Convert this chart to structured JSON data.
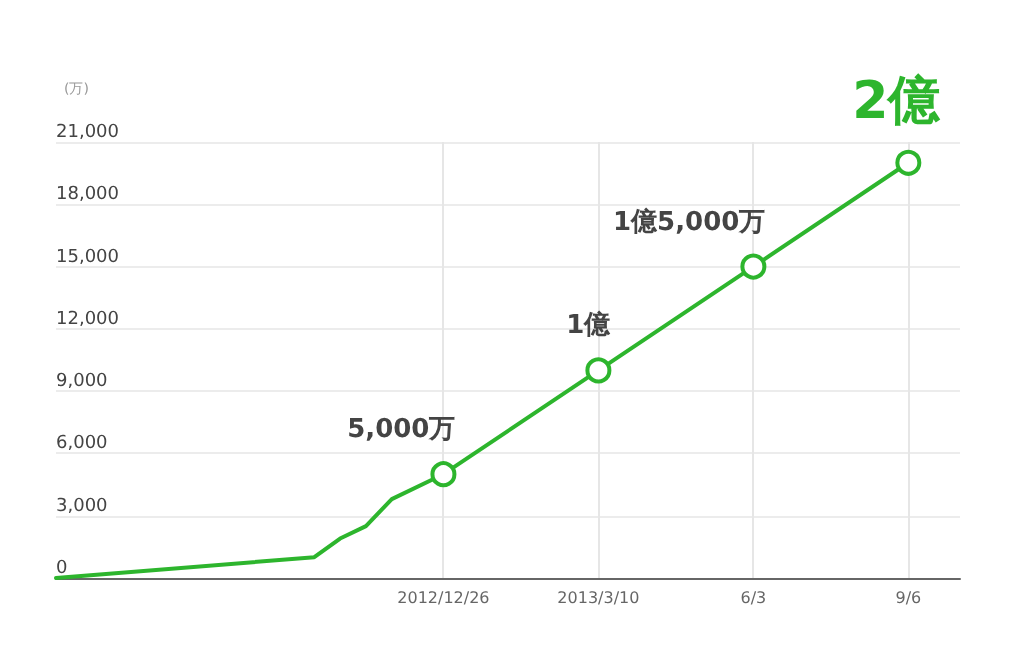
{
  "chart_data": {
    "type": "line",
    "ylabel": "(万)",
    "categories": [
      null,
      null,
      null,
      null,
      null,
      null,
      null,
      null,
      null,
      null,
      null,
      null,
      null,
      null,
      null,
      "2012/12/26",
      null,
      null,
      null,
      null,
      null,
      "2013/3/10",
      null,
      null,
      null,
      null,
      null,
      "6/3",
      null,
      null,
      null,
      null,
      null,
      "9/6",
      null,
      null
    ],
    "series": [
      {
        "color": "#2db52d",
        "values": [
          0,
          null,
          null,
          null,
          null,
          null,
          null,
          null,
          null,
          null,
          1000,
          1900,
          2500,
          3800,
          null,
          5000,
          null,
          null,
          null,
          null,
          null,
          10000,
          null,
          null,
          null,
          null,
          null,
          15000,
          null,
          null,
          null,
          null,
          null,
          20000,
          null,
          null
        ]
      }
    ],
    "annotations": [
      {
        "text": "5,000万",
        "x": "2012/12/26",
        "y": 5000
      },
      {
        "text": "1億",
        "x": "2013/3/10",
        "y": 10000
      },
      {
        "text": "1億5,000万",
        "x": "6/3",
        "y": 15000
      },
      {
        "text": "2億",
        "x": "9/6",
        "y": 20000
      }
    ],
    "ylim": [
      0,
      21000
    ],
    "yticks": [
      0,
      {
        "value": 3000,
        "label": "3,000"
      },
      {
        "value": 6000,
        "label": "6,000"
      },
      {
        "value": 9000,
        "label": "9,000"
      },
      {
        "value": 12000,
        "label": "12,000"
      },
      {
        "value": 15000,
        "label": "15,000"
      },
      {
        "value": 18000,
        "label": "18,000"
      },
      {
        "value": 21000,
        "label": "21,000"
      }
    ],
    "grid": true,
    "line_style": "solid"
  }
}
